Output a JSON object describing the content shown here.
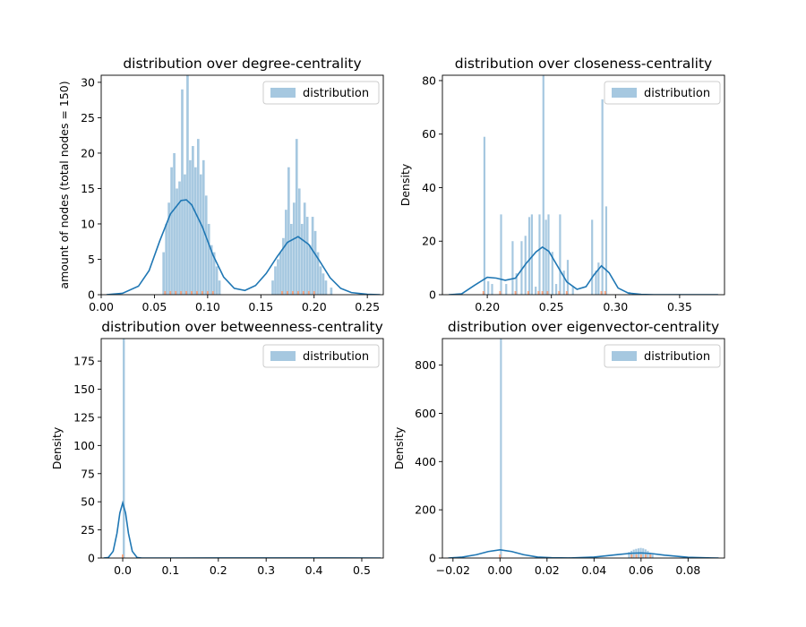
{
  "colors": {
    "hist_fill": "#a6c8e0",
    "kde_line": "#1f77b4",
    "rug": "#f4a582",
    "rug_dark": "#d9480f"
  },
  "chart_data": [
    {
      "type": "histogram+kde",
      "title": "distribution over degree-centrality",
      "ylabel": "amount of nodes (total nodes = 150)",
      "xlabel": "",
      "legend": {
        "label": "distribution",
        "position": "top-right"
      },
      "xlim": [
        0.0,
        0.265
      ],
      "ylim": [
        0,
        31
      ],
      "xticks": [
        0.0,
        0.05,
        0.1,
        0.15,
        0.2,
        0.25
      ],
      "xtick_labels": [
        "0.00",
        "0.05",
        "0.10",
        "0.15",
        "0.20",
        "0.25"
      ],
      "yticks": [
        0,
        5,
        10,
        15,
        20,
        25,
        30
      ],
      "ytick_labels": [
        "0",
        "5",
        "10",
        "15",
        "20",
        "25",
        "30"
      ],
      "bin_width": 0.0025,
      "bins": [
        [
          0.0575,
          6
        ],
        [
          0.06,
          10
        ],
        [
          0.0625,
          13
        ],
        [
          0.065,
          18
        ],
        [
          0.0675,
          20
        ],
        [
          0.07,
          15
        ],
        [
          0.0725,
          16
        ],
        [
          0.075,
          29
        ],
        [
          0.0775,
          17
        ],
        [
          0.08,
          31
        ],
        [
          0.0825,
          19
        ],
        [
          0.085,
          21
        ],
        [
          0.0875,
          18
        ],
        [
          0.09,
          22
        ],
        [
          0.0925,
          17
        ],
        [
          0.095,
          19
        ],
        [
          0.0975,
          14
        ],
        [
          0.1,
          10
        ],
        [
          0.1025,
          7
        ],
        [
          0.105,
          6
        ],
        [
          0.1075,
          4
        ],
        [
          0.11,
          2
        ],
        [
          0.16,
          2
        ],
        [
          0.1625,
          4
        ],
        [
          0.165,
          5
        ],
        [
          0.1675,
          6
        ],
        [
          0.17,
          8
        ],
        [
          0.1725,
          12
        ],
        [
          0.175,
          18
        ],
        [
          0.1775,
          10
        ],
        [
          0.18,
          13
        ],
        [
          0.1825,
          22
        ],
        [
          0.185,
          15
        ],
        [
          0.1875,
          10
        ],
        [
          0.19,
          13
        ],
        [
          0.1925,
          11
        ],
        [
          0.195,
          7
        ],
        [
          0.1975,
          11
        ],
        [
          0.2,
          9
        ],
        [
          0.2025,
          6
        ],
        [
          0.205,
          4
        ],
        [
          0.2075,
          3
        ],
        [
          0.21,
          2
        ],
        [
          0.215,
          1
        ]
      ],
      "kde": [
        [
          0.005,
          0.0
        ],
        [
          0.02,
          0.2
        ],
        [
          0.035,
          1.2
        ],
        [
          0.045,
          3.4
        ],
        [
          0.055,
          7.6
        ],
        [
          0.065,
          11.4
        ],
        [
          0.075,
          13.3
        ],
        [
          0.08,
          13.4
        ],
        [
          0.085,
          12.7
        ],
        [
          0.095,
          9.6
        ],
        [
          0.105,
          5.6
        ],
        [
          0.115,
          2.5
        ],
        [
          0.125,
          0.9
        ],
        [
          0.135,
          0.6
        ],
        [
          0.145,
          1.3
        ],
        [
          0.155,
          3.0
        ],
        [
          0.165,
          5.3
        ],
        [
          0.175,
          7.4
        ],
        [
          0.185,
          8.2
        ],
        [
          0.195,
          7.1
        ],
        [
          0.205,
          4.8
        ],
        [
          0.215,
          2.4
        ],
        [
          0.225,
          0.9
        ],
        [
          0.235,
          0.3
        ],
        [
          0.25,
          0.05
        ],
        [
          0.262,
          0.0
        ]
      ],
      "rug": [
        0.06,
        0.065,
        0.07,
        0.075,
        0.08,
        0.085,
        0.09,
        0.095,
        0.1,
        0.105,
        0.17,
        0.175,
        0.18,
        0.185,
        0.19,
        0.195,
        0.2
      ]
    },
    {
      "type": "histogram+kde",
      "title": "distribution over closeness-centrality",
      "ylabel": "Density",
      "xlabel": "",
      "legend": {
        "label": "distribution",
        "position": "top-right"
      },
      "xlim": [
        0.165,
        0.385
      ],
      "ylim": [
        0,
        82
      ],
      "xticks": [
        0.2,
        0.25,
        0.3,
        0.35
      ],
      "xtick_labels": [
        "0.20",
        "0.25",
        "0.30",
        "0.35"
      ],
      "yticks": [
        0,
        20,
        40,
        60,
        80
      ],
      "ytick_labels": [
        "0",
        "20",
        "40",
        "60",
        "80"
      ],
      "bin_width": 0.0017,
      "bins": [
        [
          0.197,
          59
        ],
        [
          0.2,
          5
        ],
        [
          0.203,
          4
        ],
        [
          0.21,
          30
        ],
        [
          0.214,
          4
        ],
        [
          0.219,
          20
        ],
        [
          0.222,
          8
        ],
        [
          0.226,
          20
        ],
        [
          0.229,
          22
        ],
        [
          0.232,
          29
        ],
        [
          0.234,
          30
        ],
        [
          0.237,
          3
        ],
        [
          0.24,
          30
        ],
        [
          0.243,
          82
        ],
        [
          0.245,
          28
        ],
        [
          0.247,
          30
        ],
        [
          0.25,
          16
        ],
        [
          0.253,
          4
        ],
        [
          0.256,
          30
        ],
        [
          0.259,
          9
        ],
        [
          0.262,
          13
        ],
        [
          0.266,
          3
        ],
        [
          0.281,
          28
        ],
        [
          0.284,
          9
        ],
        [
          0.286,
          12
        ],
        [
          0.289,
          73
        ],
        [
          0.292,
          33
        ],
        [
          0.31,
          1
        ]
      ],
      "kde": [
        [
          0.17,
          0.0
        ],
        [
          0.18,
          0.3
        ],
        [
          0.19,
          3.5
        ],
        [
          0.2,
          6.5
        ],
        [
          0.207,
          6.2
        ],
        [
          0.214,
          5.4
        ],
        [
          0.222,
          6.2
        ],
        [
          0.23,
          11.5
        ],
        [
          0.238,
          16.0
        ],
        [
          0.243,
          17.8
        ],
        [
          0.248,
          16.2
        ],
        [
          0.255,
          10.5
        ],
        [
          0.262,
          4.8
        ],
        [
          0.27,
          2.0
        ],
        [
          0.277,
          3.0
        ],
        [
          0.283,
          7.3
        ],
        [
          0.289,
          10.8
        ],
        [
          0.295,
          8.2
        ],
        [
          0.302,
          2.5
        ],
        [
          0.31,
          0.6
        ],
        [
          0.32,
          0.1
        ],
        [
          0.33,
          0.0
        ],
        [
          0.38,
          0.0
        ]
      ],
      "rug": [
        0.197,
        0.21,
        0.222,
        0.232,
        0.24,
        0.243,
        0.247,
        0.256,
        0.262,
        0.289,
        0.292
      ]
    },
    {
      "type": "histogram+kde",
      "title": "distribution over betweenness-centrality",
      "ylabel": "Density",
      "xlabel": "",
      "legend": {
        "label": "distribution",
        "position": "top-right"
      },
      "xlim": [
        -0.045,
        0.545
      ],
      "ylim": [
        0,
        195
      ],
      "xticks": [
        0.0,
        0.1,
        0.2,
        0.3,
        0.4,
        0.5
      ],
      "xtick_labels": [
        "0.0",
        "0.1",
        "0.2",
        "0.3",
        "0.4",
        "0.5"
      ],
      "yticks": [
        0,
        25,
        50,
        75,
        100,
        125,
        150,
        175
      ],
      "ytick_labels": [
        "0",
        "25",
        "50",
        "75",
        "100",
        "125",
        "150",
        "175"
      ],
      "bin_width": 0.005,
      "bins": [
        [
          0.0,
          195
        ]
      ],
      "kde": [
        [
          -0.04,
          0.0
        ],
        [
          -0.03,
          0.5
        ],
        [
          -0.02,
          6
        ],
        [
          -0.012,
          22
        ],
        [
          -0.006,
          40
        ],
        [
          0.0,
          49
        ],
        [
          0.006,
          40
        ],
        [
          0.012,
          22
        ],
        [
          0.02,
          6
        ],
        [
          0.03,
          0.5
        ],
        [
          0.04,
          0.0
        ],
        [
          0.1,
          0.0
        ],
        [
          0.2,
          0.1
        ],
        [
          0.3,
          0.05
        ],
        [
          0.4,
          0.02
        ],
        [
          0.54,
          0.0
        ]
      ],
      "rug": [
        0.0
      ]
    },
    {
      "type": "histogram+kde",
      "title": "distribution over eigenvector-centrality",
      "ylabel": "Density",
      "xlabel": "",
      "legend": {
        "label": "distribution",
        "position": "top-right"
      },
      "xlim": [
        -0.0245,
        0.0955
      ],
      "ylim": [
        0,
        910
      ],
      "xticks": [
        -0.02,
        0.0,
        0.02,
        0.04,
        0.06,
        0.08
      ],
      "xtick_labels": [
        "−0.02",
        "0.00",
        "0.02",
        "0.04",
        "0.06",
        "0.08"
      ],
      "yticks": [
        0,
        200,
        400,
        600,
        800
      ],
      "ytick_labels": [
        "0",
        "200",
        "400",
        "600",
        "800"
      ],
      "bin_width": 0.0009,
      "bins": [
        [
          0.0,
          910
        ],
        [
          0.0545,
          25
        ],
        [
          0.0555,
          30
        ],
        [
          0.0565,
          35
        ],
        [
          0.0575,
          38
        ],
        [
          0.0585,
          40
        ],
        [
          0.0595,
          42
        ],
        [
          0.0605,
          40
        ],
        [
          0.0615,
          36
        ],
        [
          0.0625,
          30
        ],
        [
          0.0635,
          22
        ],
        [
          0.0645,
          14
        ]
      ],
      "kde": [
        [
          -0.022,
          0.0
        ],
        [
          -0.016,
          4
        ],
        [
          -0.01,
          14
        ],
        [
          -0.005,
          27
        ],
        [
          0.0,
          34
        ],
        [
          0.005,
          27
        ],
        [
          0.01,
          14
        ],
        [
          0.016,
          4
        ],
        [
          0.022,
          1
        ],
        [
          0.03,
          0.5
        ],
        [
          0.04,
          4
        ],
        [
          0.05,
          14
        ],
        [
          0.056,
          20
        ],
        [
          0.06,
          21
        ],
        [
          0.064,
          19
        ],
        [
          0.07,
          12
        ],
        [
          0.08,
          3
        ],
        [
          0.09,
          0.3
        ],
        [
          0.093,
          0.0
        ]
      ],
      "rug": [
        0.0,
        0.056,
        0.058,
        0.06,
        0.062,
        0.064
      ]
    }
  ]
}
